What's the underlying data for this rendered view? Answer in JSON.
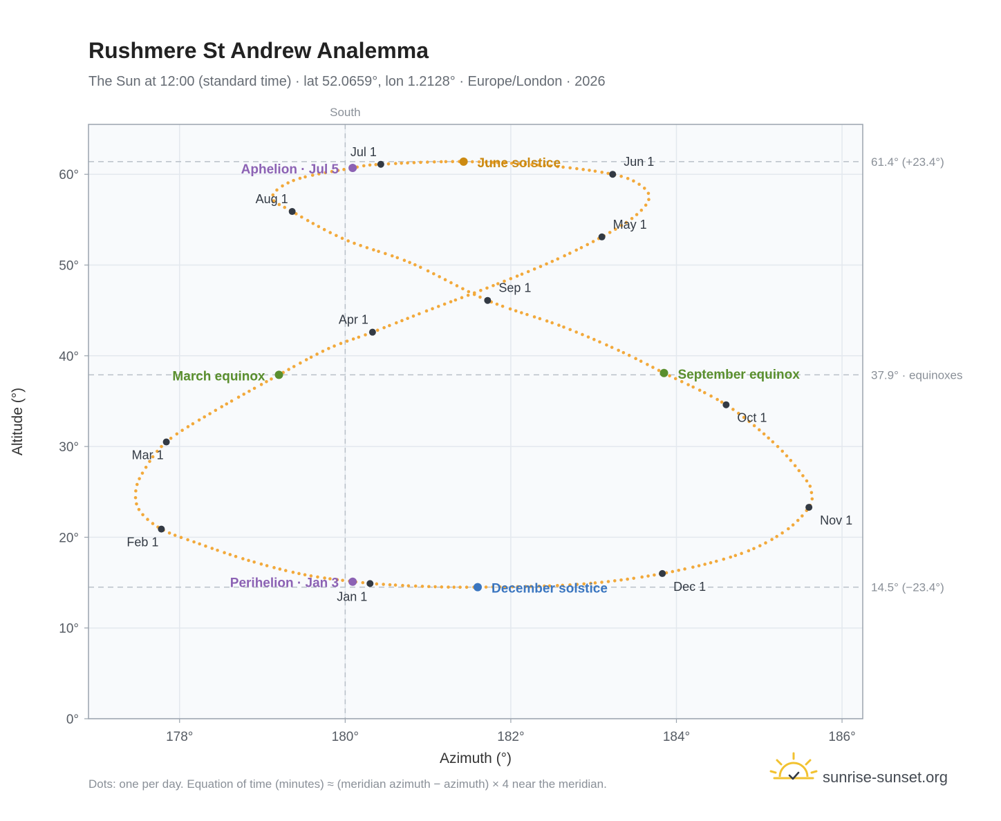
{
  "chart_data": {
    "type": "scatter",
    "title": "Rushmere St Andrew Analemma",
    "subtitle": "The Sun at 12:00 (standard time) · lat 52.0659°, lon 1.2128° · Europe/London · 2026",
    "xlabel": "Azimuth (°)",
    "ylabel": "Altitude (°)",
    "xlim": [
      176.9,
      186.25
    ],
    "ylim": [
      0,
      65.5
    ],
    "xticks": [
      178,
      180,
      182,
      184,
      186
    ],
    "xtick_labels": [
      "178°",
      "180°",
      "182°",
      "184°",
      "186°"
    ],
    "yticks": [
      0,
      10,
      20,
      30,
      40,
      50,
      60
    ],
    "ytick_labels": [
      "0°",
      "10°",
      "20°",
      "30°",
      "40°",
      "50°",
      "60°"
    ],
    "grid": true,
    "meridian": {
      "x": 180,
      "label": "South"
    },
    "reference_lines": [
      {
        "y": 61.4,
        "label": "61.4° (+23.4°)"
      },
      {
        "y": 37.9,
        "label": "37.9° · equinoxes"
      },
      {
        "y": 14.5,
        "label": "14.5° (−23.4°)"
      }
    ],
    "path_color": "#f2a93b",
    "path": [
      {
        "x": 180.3,
        "y": 14.9
      },
      {
        "x": 179.55,
        "y": 15.8
      },
      {
        "x": 178.85,
        "y": 17.4
      },
      {
        "x": 178.2,
        "y": 19.4
      },
      {
        "x": 177.78,
        "y": 20.9
      },
      {
        "x": 177.52,
        "y": 22.9
      },
      {
        "x": 177.47,
        "y": 25.0
      },
      {
        "x": 177.56,
        "y": 27.2
      },
      {
        "x": 177.84,
        "y": 30.5
      },
      {
        "x": 178.4,
        "y": 33.8
      },
      {
        "x": 179.2,
        "y": 37.9
      },
      {
        "x": 179.8,
        "y": 40.8
      },
      {
        "x": 180.33,
        "y": 42.6
      },
      {
        "x": 181.0,
        "y": 45.0
      },
      {
        "x": 181.75,
        "y": 47.6
      },
      {
        "x": 182.5,
        "y": 50.4
      },
      {
        "x": 183.1,
        "y": 53.1
      },
      {
        "x": 183.5,
        "y": 55.4
      },
      {
        "x": 183.67,
        "y": 57.4
      },
      {
        "x": 183.55,
        "y": 58.9
      },
      {
        "x": 183.23,
        "y": 60.0
      },
      {
        "x": 182.5,
        "y": 60.9
      },
      {
        "x": 181.43,
        "y": 61.4
      },
      {
        "x": 180.43,
        "y": 61.1
      },
      {
        "x": 180.09,
        "y": 60.7
      },
      {
        "x": 179.4,
        "y": 59.4
      },
      {
        "x": 179.12,
        "y": 57.5
      },
      {
        "x": 179.36,
        "y": 55.9
      },
      {
        "x": 180.0,
        "y": 52.8
      },
      {
        "x": 180.8,
        "y": 50.2
      },
      {
        "x": 181.72,
        "y": 46.1
      },
      {
        "x": 182.6,
        "y": 43.3
      },
      {
        "x": 183.3,
        "y": 40.6
      },
      {
        "x": 183.85,
        "y": 38.1
      },
      {
        "x": 184.6,
        "y": 34.6
      },
      {
        "x": 185.2,
        "y": 30.2
      },
      {
        "x": 185.55,
        "y": 26.5
      },
      {
        "x": 185.63,
        "y": 25.0
      },
      {
        "x": 185.6,
        "y": 23.3
      },
      {
        "x": 185.3,
        "y": 20.6
      },
      {
        "x": 184.75,
        "y": 18.1
      },
      {
        "x": 183.83,
        "y": 16.0
      },
      {
        "x": 182.8,
        "y": 14.8
      },
      {
        "x": 181.6,
        "y": 14.5
      },
      {
        "x": 180.9,
        "y": 14.6
      },
      {
        "x": 180.3,
        "y": 14.9
      }
    ],
    "month_markers": [
      {
        "label": "Jan 1",
        "x": 180.3,
        "y": 14.9,
        "anchor": "below-left"
      },
      {
        "label": "Feb 1",
        "x": 177.78,
        "y": 20.9,
        "anchor": "below-left"
      },
      {
        "label": "Mar 1",
        "x": 177.84,
        "y": 30.5,
        "anchor": "below-left"
      },
      {
        "label": "Apr 1",
        "x": 180.33,
        "y": 42.6,
        "anchor": "above-left"
      },
      {
        "label": "May 1",
        "x": 183.1,
        "y": 53.1,
        "anchor": "above-right"
      },
      {
        "label": "Jun 1",
        "x": 183.23,
        "y": 60.0,
        "anchor": "above-right"
      },
      {
        "label": "Jul 1",
        "x": 180.43,
        "y": 61.1,
        "anchor": "above-left"
      },
      {
        "label": "Aug 1",
        "x": 179.36,
        "y": 55.9,
        "anchor": "above-left"
      },
      {
        "label": "Sep 1",
        "x": 181.72,
        "y": 46.1,
        "anchor": "above-right"
      },
      {
        "label": "Oct 1",
        "x": 184.6,
        "y": 34.6,
        "anchor": "below-right"
      },
      {
        "label": "Nov 1",
        "x": 185.6,
        "y": 23.3,
        "anchor": "below-right"
      },
      {
        "label": "Dec 1",
        "x": 183.83,
        "y": 16.0,
        "anchor": "below-right"
      }
    ],
    "events": [
      {
        "label": "June solstice",
        "x": 181.43,
        "y": 61.4,
        "color": "#cc8a12",
        "side": "right"
      },
      {
        "label": "Aphelion · Jul 5",
        "x": 180.09,
        "y": 60.7,
        "color": "#8c62b4",
        "side": "left"
      },
      {
        "label": "March equinox",
        "x": 179.2,
        "y": 37.9,
        "color": "#5a8f2e",
        "side": "left"
      },
      {
        "label": "September equinox",
        "x": 183.85,
        "y": 38.1,
        "color": "#5a8f2e",
        "side": "right"
      },
      {
        "label": "Perihelion · Jan 3",
        "x": 180.09,
        "y": 15.1,
        "color": "#8c62b4",
        "side": "left"
      },
      {
        "label": "December solstice",
        "x": 181.6,
        "y": 14.5,
        "color": "#3b76c0",
        "side": "right"
      }
    ],
    "footnote": "Dots: one per day. Equation of time (minutes) ≈ (meridian azimuth − azimuth) × 4 near the meridian."
  },
  "brand": {
    "name": "sunrise-sunset.org",
    "logo_icon": "sun-check-icon",
    "logo_color": "#f2c230"
  }
}
